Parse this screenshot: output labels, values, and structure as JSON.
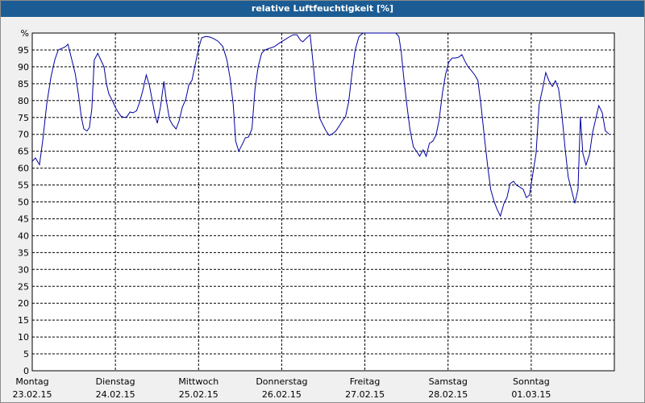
{
  "chart_data": {
    "type": "line",
    "title": "relative Luftfeuchtigkeit [%]",
    "xlim": [
      0,
      168
    ],
    "ylim": [
      0,
      100
    ],
    "yticks": [
      0,
      5,
      10,
      15,
      20,
      25,
      30,
      35,
      40,
      45,
      50,
      55,
      60,
      65,
      70,
      75,
      80,
      85,
      90,
      95,
      {
        "value": 100,
        "label": "%"
      }
    ],
    "xticks": [
      {
        "value": 0,
        "label": "Montag",
        "date": "23.02.15"
      },
      {
        "value": 24,
        "label": "Dienstag",
        "date": "24.02.15"
      },
      {
        "value": 48,
        "label": "Mittwoch",
        "date": "25.02.15"
      },
      {
        "value": 72,
        "label": "Donnerstag",
        "date": "26.02.15"
      },
      {
        "value": 96,
        "label": "Freitag",
        "date": "27.02.15"
      },
      {
        "value": 120,
        "label": "Samstag",
        "date": "28.02.15"
      },
      {
        "value": 144,
        "label": "Sonntag",
        "date": "01.03.15"
      }
    ],
    "grid": true,
    "x": [
      0,
      0.9,
      2.1,
      3.0,
      4.2,
      5.4,
      6.5,
      7.5,
      8.6,
      9.6,
      10.3,
      11.2,
      12.4,
      13.3,
      14.2,
      14.9,
      15.8,
      16.5,
      17.2,
      17.9,
      18.9,
      19.8,
      20.7,
      21.4,
      22.1,
      23.1,
      24.0,
      24.9,
      25.6,
      26.6,
      27.3,
      28.2,
      29.1,
      30.1,
      31.0,
      31.9,
      32.9,
      33.8,
      34.7,
      35.4,
      36.1,
      37.0,
      38.0,
      38.7,
      39.6,
      40.5,
      41.5,
      42.4,
      43.3,
      44.3,
      45.2,
      46.1,
      47.1,
      48.0,
      48.9,
      50.1,
      51.3,
      52.4,
      53.6,
      55.0,
      56.2,
      57.1,
      58.0,
      58.7,
      59.6,
      60.6,
      61.5,
      62.4,
      63.4,
      64.3,
      65.2,
      66.2,
      67.1,
      68.5,
      69.9,
      71.3,
      72.7,
      74.1,
      75.3,
      76.4,
      77.4,
      78.1,
      79.2,
      80.2,
      81.1,
      82.0,
      83.0,
      83.9,
      84.8,
      85.7,
      86.7,
      87.6,
      88.5,
      89.5,
      90.4,
      91.3,
      92.3,
      93.2,
      94.3,
      95.5,
      97.9,
      100.2,
      102.5,
      104.9,
      105.8,
      106.5,
      107.2,
      108.1,
      109.0,
      110.0,
      110.9,
      111.8,
      112.8,
      113.7,
      114.6,
      115.6,
      116.5,
      117.4,
      118.4,
      119.3,
      120.2,
      121.2,
      122.1,
      123.0,
      124.0,
      124.9,
      125.8,
      126.8,
      127.7,
      128.6,
      129.5,
      130.5,
      131.4,
      132.3,
      133.3,
      134.2,
      135.1,
      136.1,
      137.0,
      137.9,
      138.9,
      139.8,
      140.7,
      141.7,
      142.6,
      143.5,
      144.5,
      145.4,
      146.3,
      147.3,
      148.2,
      149.1,
      150.1,
      151.0,
      151.9,
      152.8,
      153.8,
      154.7,
      155.6,
      156.6,
      157.5,
      158.2,
      158.9,
      159.8,
      160.8,
      161.7,
      162.6,
      163.5,
      164.5,
      165.4,
      166.4
    ],
    "series": [
      {
        "name": "relative Luftfeuchtigkeit",
        "color": "#0000a0",
        "values": [
          62,
          63,
          61,
          68,
          79,
          87,
          92,
          95,
          95.5,
          96,
          96.7,
          93,
          88,
          82,
          75,
          71.6,
          71,
          72,
          77.6,
          92,
          94,
          92,
          90,
          85,
          82,
          80,
          78,
          76.4,
          75.4,
          75,
          75.2,
          76.6,
          76.4,
          77,
          79.5,
          83,
          87.6,
          84.5,
          79.7,
          76,
          73.3,
          78,
          85.7,
          80,
          74.5,
          72.8,
          71.6,
          74,
          78,
          80.4,
          84.7,
          86,
          91,
          95.5,
          98.6,
          99,
          98.8,
          98.3,
          97.6,
          96,
          92,
          86.6,
          78.8,
          68,
          65,
          67,
          69,
          69.2,
          71.6,
          83.5,
          90,
          94,
          95,
          95.5,
          96,
          97,
          97.9,
          98.8,
          99.5,
          99.5,
          97.9,
          97.4,
          98.6,
          99.5,
          90.7,
          81,
          74.7,
          72.8,
          71,
          69.7,
          70.2,
          71,
          72.3,
          74,
          75.2,
          79.5,
          88.3,
          95,
          99,
          100,
          100,
          100,
          100,
          100,
          99,
          94.3,
          87,
          78.8,
          71.6,
          66.3,
          65,
          63.5,
          65.4,
          63.5,
          67.3,
          68,
          69.7,
          74,
          82.3,
          87.8,
          91.4,
          92.6,
          92.6,
          92.8,
          93.6,
          91.6,
          90,
          88.8,
          87.6,
          86,
          78.8,
          69.2,
          60.9,
          53.7,
          50.1,
          47.7,
          45.8,
          49.4,
          51.3,
          55.4,
          56.1,
          54.9,
          54.4,
          53.7,
          51.3,
          52,
          58.5,
          64.4,
          78.8,
          83.5,
          88.3,
          85.9,
          84.2,
          85.9,
          83.5,
          76.4,
          65.6,
          57.3,
          53.7,
          49.6,
          53.7,
          75.2,
          64.4,
          60.9,
          64,
          70.4,
          74.5,
          78.5,
          76.4,
          71,
          70.2
        ]
      }
    ]
  }
}
